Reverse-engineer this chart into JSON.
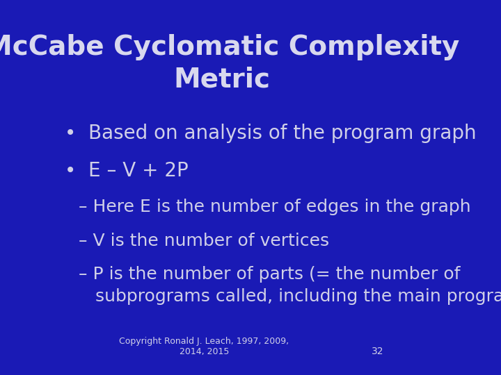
{
  "title_line1": "McCabe Cyclomatic Complexity",
  "title_line2": "Metric",
  "background_color": "#1a1ab5",
  "text_color": "#d0d0e8",
  "title_color": "#d8d8ee",
  "bullet1": "Based on analysis of the program graph",
  "bullet2": "E – V + 2P",
  "sub1": "– Here E is the number of edges in the graph",
  "sub2": "– V is the number of vertices",
  "sub3_line1": "– P is the number of parts (= the number of",
  "sub3_line2": "   subprograms called, including the main program)",
  "copyright": "Copyright Ronald J. Leach, 1997, 2009,\n2014, 2015",
  "page_number": "32",
  "title_fontsize": 28,
  "bullet_fontsize": 20,
  "sub_fontsize": 18,
  "copyright_fontsize": 9
}
